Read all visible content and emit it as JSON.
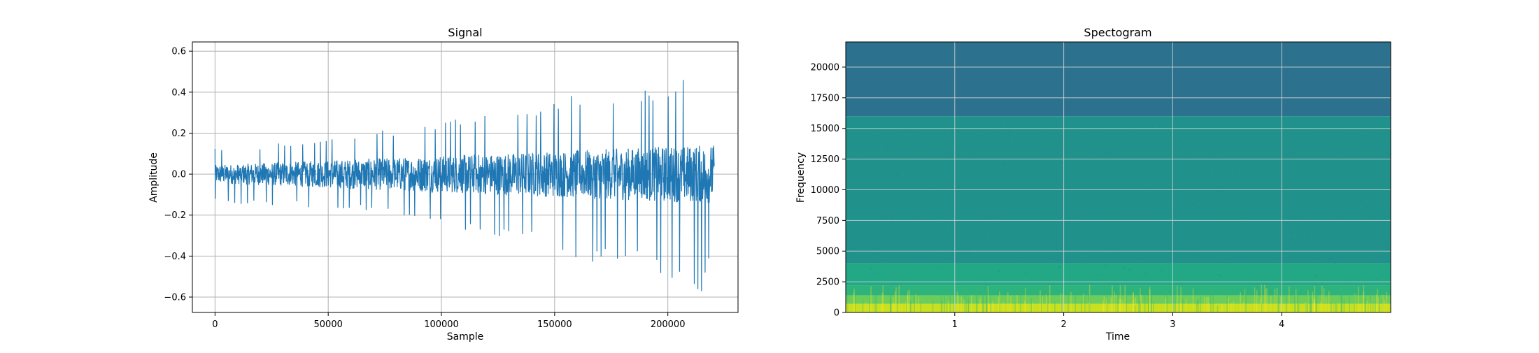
{
  "chart_data": [
    {
      "type": "line",
      "title": "Signal",
      "xlabel": "Sample",
      "ylabel": "Amplitude",
      "xlim": [
        -10000,
        231000
      ],
      "ylim": [
        -0.675,
        0.645
      ],
      "xticks": [
        0,
        50000,
        100000,
        150000,
        200000
      ],
      "xtick_labels": [
        "0",
        "50000",
        "100000",
        "150000",
        "200000"
      ],
      "yticks": [
        -0.6,
        -0.4,
        -0.2,
        0.0,
        0.2,
        0.4,
        0.6
      ],
      "ytick_labels": [
        "−0.6",
        "−0.4",
        "−0.2",
        "0.0",
        "0.2",
        "0.4",
        "0.6"
      ],
      "grid": true,
      "line_color": "#1f77b4",
      "series": [
        {
          "x": [
            0,
            20000,
            40000,
            60000,
            80000,
            100000,
            120000,
            140000,
            160000,
            180000,
            200000,
            210000,
            215000,
            220500
          ],
          "upper_envelope": [
            0.13,
            0.14,
            0.17,
            0.2,
            0.22,
            0.26,
            0.31,
            0.33,
            0.39,
            0.4,
            0.43,
            0.48,
            0.58,
            0.2
          ],
          "lower_envelope": [
            -0.14,
            -0.15,
            -0.16,
            -0.18,
            -0.21,
            -0.25,
            -0.3,
            -0.35,
            -0.42,
            -0.44,
            -0.53,
            -0.56,
            -0.62,
            -0.31
          ]
        }
      ]
    },
    {
      "type": "heatmap",
      "title": "Spectogram",
      "xlabel": "Time",
      "ylabel": "Frequency",
      "xlim": [
        0,
        5.0
      ],
      "ylim": [
        0,
        22050
      ],
      "xticks": [
        1,
        2,
        3,
        4
      ],
      "xtick_labels": [
        "1",
        "2",
        "3",
        "4"
      ],
      "yticks": [
        0,
        2500,
        5000,
        7500,
        10000,
        12500,
        15000,
        17500,
        20000
      ],
      "ytick_labels": [
        "0",
        "2500",
        "5000",
        "7500",
        "10000",
        "12500",
        "15000",
        "17500",
        "20000"
      ],
      "grid": true,
      "colormap": "viridis",
      "frequency_bands": [
        {
          "from": 0,
          "to": 700,
          "color": "#c8e020"
        },
        {
          "from": 700,
          "to": 1400,
          "color": "#6ccd5a"
        },
        {
          "from": 1400,
          "to": 2200,
          "color": "#2eb37c"
        },
        {
          "from": 2200,
          "to": 4000,
          "color": "#22a884"
        },
        {
          "from": 4000,
          "to": 16000,
          "color": "#21918c"
        },
        {
          "from": 16000,
          "to": 22050,
          "color": "#2c728e"
        }
      ]
    }
  ]
}
